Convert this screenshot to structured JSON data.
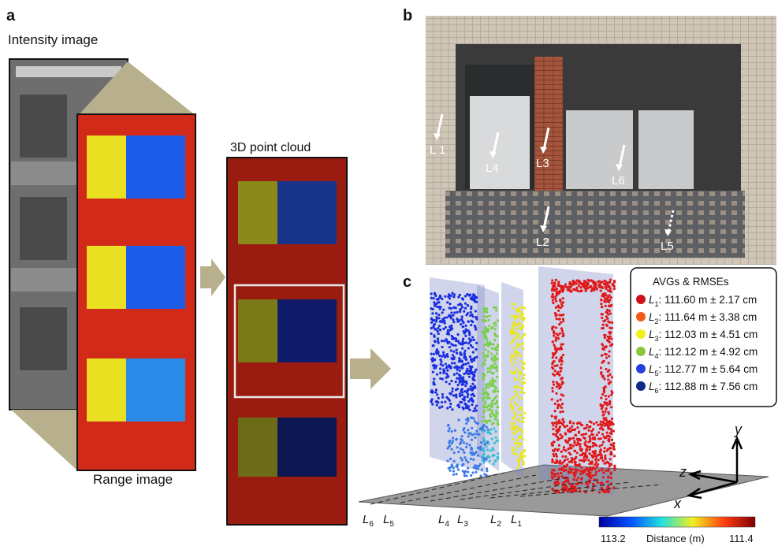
{
  "panels": {
    "a": "a",
    "b": "b",
    "c": "c"
  },
  "panel_a": {
    "intensity_label": "Intensity image",
    "range_label": "Range image",
    "cloud_label": "3D point cloud"
  },
  "panel_b": {
    "labels": [
      "L 1",
      "L4",
      "L3",
      "L6",
      "L2",
      "L5"
    ]
  },
  "panel_c": {
    "legend": {
      "title": "AVGs & RMSEs",
      "entries": [
        {
          "label": "L",
          "sub": "1",
          "text": ": 111.60 m ± 2.17 cm",
          "color": "#d0101a"
        },
        {
          "label": "L",
          "sub": "2",
          "text": ": 111.64 m ± 3.38 cm",
          "color": "#f25a18"
        },
        {
          "label": "L",
          "sub": "3",
          "text": ": 112.03 m ± 4.51 cm",
          "color": "#f2f01a"
        },
        {
          "label": "L",
          "sub": "4",
          "text": ": 112.12 m ± 4.92 cm",
          "color": "#8cc63e"
        },
        {
          "label": "L",
          "sub": "5",
          "text": ": 112.77 m ± 5.64 cm",
          "color": "#2a3ee0"
        },
        {
          "label": "L",
          "sub": "6",
          "text": ": 112.88 m ± 7.56 cm",
          "color": "#0c2a8a"
        }
      ]
    },
    "axes": {
      "y": "y",
      "z": "z",
      "x": "x"
    },
    "floor_labels": [
      {
        "label": "L",
        "sub": "6"
      },
      {
        "label": "L",
        "sub": "5"
      },
      {
        "label": "L",
        "sub": "4"
      },
      {
        "label": "L",
        "sub": "3"
      },
      {
        "label": "L",
        "sub": "2"
      },
      {
        "label": "L",
        "sub": "1"
      }
    ],
    "colorbar": {
      "left": "113.2",
      "title": "Distance (m)",
      "right": "111.4"
    }
  }
}
